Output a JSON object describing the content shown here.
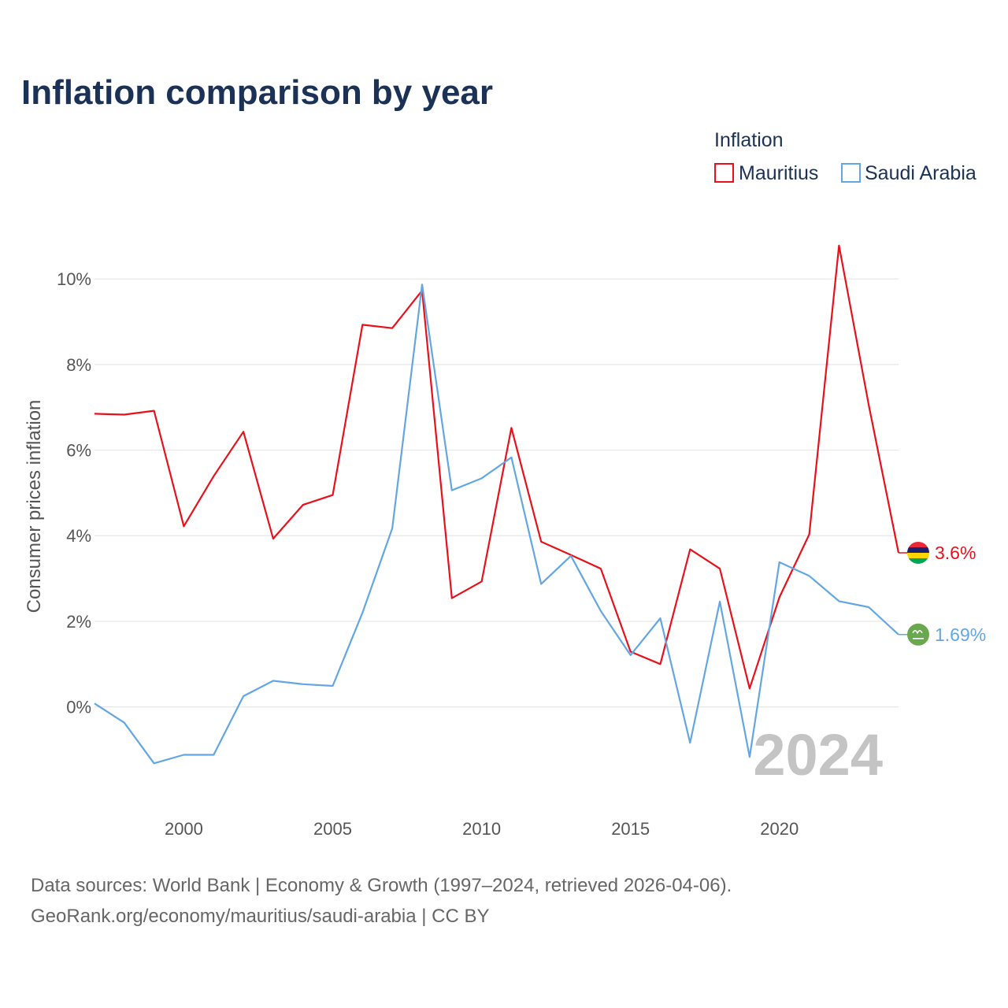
{
  "chart_data": {
    "type": "line",
    "title": "Inflation comparison by year",
    "legend_title": "Inflation",
    "ylabel": "Consumer prices inflation",
    "xlabel": "",
    "x": [
      1997,
      1998,
      1999,
      2000,
      2001,
      2002,
      2003,
      2004,
      2005,
      2006,
      2007,
      2008,
      2009,
      2010,
      2011,
      2012,
      2013,
      2014,
      2015,
      2016,
      2017,
      2018,
      2019,
      2020,
      2021,
      2022,
      2023,
      2024
    ],
    "xlim": [
      1997,
      2024
    ],
    "ylim": [
      -2.05,
      11.2
    ],
    "x_ticks": [
      2000,
      2005,
      2010,
      2015,
      2020
    ],
    "y_ticks": [
      0,
      2,
      4,
      6,
      8,
      10
    ],
    "y_tick_labels": [
      "0%",
      "2%",
      "4%",
      "6%",
      "8%",
      "10%"
    ],
    "series": [
      {
        "name": "Mauritius",
        "color": "#e8111a",
        "end_label": "3.6%",
        "flag": "mauritius-flag-icon",
        "values": [
          6.85,
          6.83,
          6.92,
          4.22,
          5.39,
          6.43,
          3.93,
          4.72,
          4.95,
          8.93,
          8.85,
          9.73,
          2.54,
          2.93,
          6.52,
          3.86,
          3.55,
          3.23,
          1.29,
          1.0,
          3.68,
          3.23,
          0.43,
          2.56,
          4.03,
          10.78,
          7.05,
          3.6
        ]
      },
      {
        "name": "Saudi Arabia",
        "color": "#62a6e4",
        "end_label": "1.69%",
        "flag": "saudi-arabia-flag-icon",
        "values": [
          0.08,
          -0.37,
          -1.32,
          -1.12,
          -1.12,
          0.25,
          0.61,
          0.53,
          0.49,
          2.2,
          4.17,
          9.87,
          5.06,
          5.34,
          5.83,
          2.87,
          3.53,
          2.24,
          1.21,
          2.07,
          -0.84,
          2.46,
          -1.17,
          3.38,
          3.06,
          2.47,
          2.33,
          1.69
        ]
      }
    ],
    "current_year_label": "2024",
    "grid": true,
    "legend_position": "top-right"
  },
  "footer": {
    "source_line": "Data sources: World Bank | Economy & Growth (1997–2024, retrieved 2026-04-06).",
    "link_line": "GeoRank.org/economy/mauritius/saudi-arabia | CC BY"
  },
  "colors": {
    "title": "#1b3256",
    "axis_text": "#555555",
    "grid": "#e6e6e6",
    "year_watermark": "#c4c4c4",
    "mauritius_flag": [
      "#ea2839",
      "#1a206d",
      "#ffd500",
      "#00a551"
    ],
    "saudi_flag": "#6aa84f"
  }
}
